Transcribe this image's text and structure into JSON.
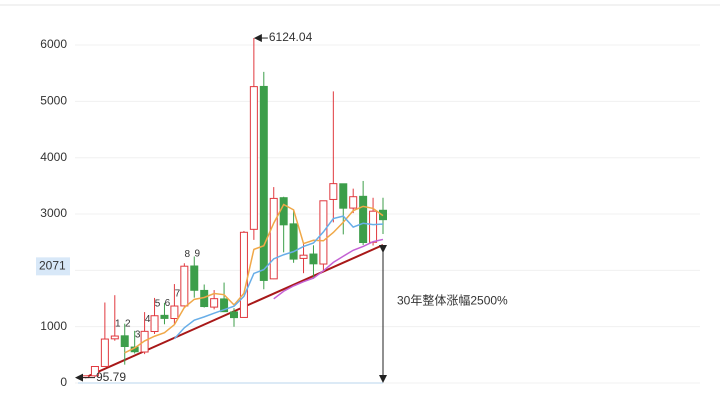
{
  "chart_data": {
    "type": "candlestick",
    "categories": [
      null,
      null,
      null,
      null,
      null,
      null,
      null,
      null,
      null,
      null,
      null,
      null,
      null,
      null,
      null,
      null,
      null,
      null,
      null,
      null,
      null,
      null,
      null,
      null,
      null,
      null,
      null,
      null,
      null,
      null,
      null
    ],
    "open": [
      96.05,
      127.61,
      293.74,
      784.13,
      837.7,
      637.72,
      550.26,
      914.06,
      1200.95,
      1144.89,
      1368.69,
      2077.07,
      1643.49,
      1347.43,
      1492.72,
      1260.78,
      1163.88,
      2728.19,
      5265.0,
      1849.02,
      3289.75,
      2825.33,
      2212.0,
      2289.51,
      2112.13,
      3258.63,
      3536.59,
      3105.31,
      3314.03,
      2497.88,
      3066.34
    ],
    "high": [
      127.61,
      292.75,
      1429.01,
      1558.95,
      1052.94,
      926.41,
      1258.69,
      1510.18,
      1422.98,
      1756.18,
      2125.72,
      2245.43,
      1748.89,
      1649.6,
      1783.01,
      1328.53,
      2698.9,
      6124.04,
      5522.78,
      3478.01,
      3306.75,
      3067.46,
      2478.38,
      2444.8,
      3239.36,
      5178.19,
      3538.69,
      3450.49,
      3587.03,
      3288.45,
      3288
    ],
    "low": [
      95.79,
      104.96,
      292.76,
      750.46,
      325.89,
      524.43,
      512.83,
      870.18,
      1043.02,
      1047.83,
      1361.21,
      1514.86,
      1339.2,
      1307.4,
      1259.43,
      998.23,
      1161.91,
      2541.52,
      1664.93,
      1844.09,
      2319.74,
      2134.02,
      1949.46,
      1849.65,
      1974.38,
      2850.71,
      2638.3,
      3016.53,
      2449.2,
      2440.91,
      2646
    ],
    "close": [
      127.61,
      292.75,
      780.39,
      833.8,
      647.87,
      555.29,
      917.02,
      1194.1,
      1146.7,
      1366.58,
      2073.48,
      1645.97,
      1357.65,
      1497.04,
      1266.5,
      1161.06,
      2675.47,
      5261.56,
      1820.81,
      3277.14,
      2808.08,
      2199.42,
      2269.13,
      2115.98,
      3234.68,
      3539.18,
      3103.64,
      3307.17,
      2493.9,
      3050.12,
      2900
    ],
    "up_color": "#e0383e",
    "down_color": "#3c9e4a",
    "moving_averages": [
      {
        "color": "#f0a848",
        "values": [
          null,
          null,
          null,
          null,
          536,
          622,
          747,
          830,
          892,
          1036,
          1340,
          1485,
          1518,
          1588,
          1568,
          1386,
          1592,
          2372,
          2437,
          2839,
          3169,
          3073,
          2475,
          2534,
          2525,
          2672,
          2853,
          3060,
          3136,
          3099,
          2971
        ]
      },
      {
        "color": "#68aee8",
        "values": [
          null,
          null,
          null,
          null,
          null,
          null,
          null,
          null,
          null,
          786,
          981,
          1116,
          1174,
          1240,
          1302,
          1363,
          1538,
          1945,
          2013,
          2204,
          2277,
          2332,
          2424,
          2486,
          2682,
          2920,
          2963,
          2768,
          2835,
          2812,
          2821
        ]
      },
      {
        "color": "#c462d4",
        "values": [
          null,
          null,
          null,
          null,
          null,
          null,
          null,
          null,
          null,
          null,
          null,
          null,
          null,
          null,
          null,
          null,
          null,
          null,
          null,
          1495,
          1629,
          1724,
          1799,
          1863,
          1992,
          2141,
          2251,
          2356,
          2424,
          2508,
          2549
        ]
      }
    ],
    "candle_labels": [
      null,
      null,
      null,
      "1",
      "2",
      "3",
      "4",
      "5",
      "6",
      "7",
      "8",
      "9",
      null,
      null,
      null,
      null,
      null,
      null,
      null,
      null,
      null,
      null,
      null,
      null,
      null,
      null,
      null,
      null,
      null,
      null,
      null
    ],
    "trendline": [
      95.79,
      2450
    ],
    "trendline_color": "#a81818",
    "gain_annotation": "30年整体涨幅2500%",
    "crosshair_value": 2071,
    "ylim": [
      0,
      6400
    ],
    "yticks": [
      0,
      1000,
      2000,
      3000,
      4000,
      5000,
      6000
    ],
    "grid": true
  }
}
